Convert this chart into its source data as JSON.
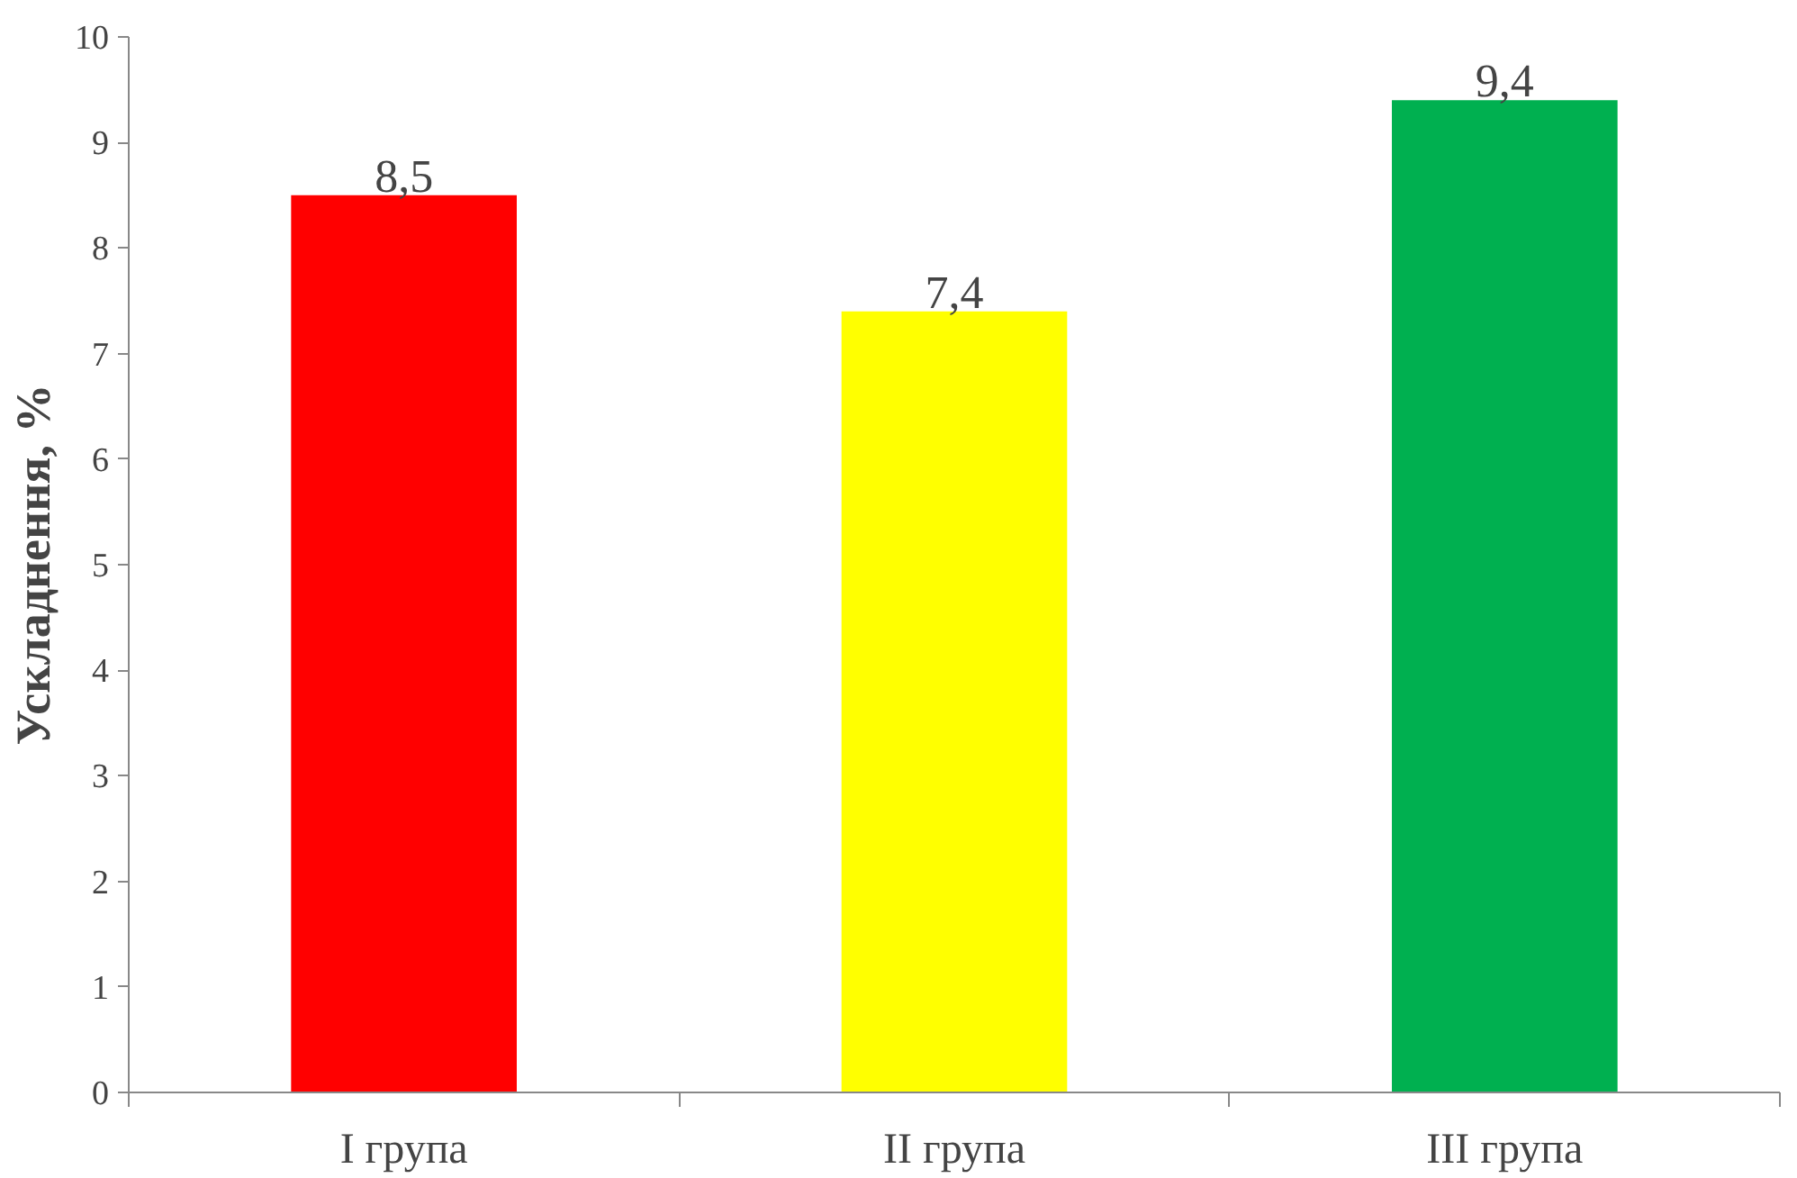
{
  "chart_data": {
    "type": "bar",
    "ylabel": "Ускладнення, %",
    "categories": [
      "I група",
      "II група",
      "III група"
    ],
    "values": [
      8.5,
      7.4,
      9.4
    ],
    "colors": [
      "#ff0000",
      "#ffff00",
      "#00b050"
    ],
    "ylim": [
      0,
      10
    ],
    "yticks": [
      0,
      1,
      2,
      3,
      4,
      5,
      6,
      7,
      8,
      9,
      10
    ],
    "value_labels": [
      "8,5",
      "7,4",
      "9,4"
    ],
    "grid": false
  }
}
